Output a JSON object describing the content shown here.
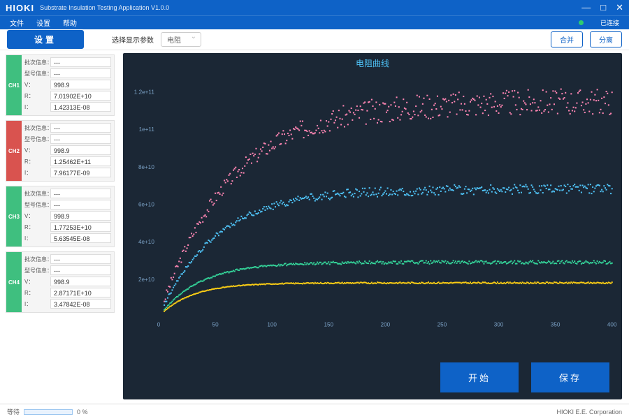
{
  "window": {
    "brand": "HIOKI",
    "subtitle": "Substrate Insulation Testing Application V1.0.0",
    "min": "—",
    "max": "□",
    "close": "✕"
  },
  "menu": {
    "file": "文件",
    "settings": "设置",
    "help": "帮助",
    "connected": "已连接"
  },
  "toolbar": {
    "settings_btn": "设置",
    "param_label": "选择显示参数",
    "param_value": "电阻",
    "merge": "合并",
    "split": "分离"
  },
  "chart": {
    "type": "scatter",
    "title": "电阻曲线",
    "background_color": "#1b2735",
    "title_color": "#4fc3f7",
    "axis_text_color": "#7aa0c4",
    "xlim": [
      0,
      400
    ],
    "xtick_step": 50,
    "ylim": [
      0,
      130000000000
    ],
    "yticks": [
      20000000000,
      40000000000,
      60000000000,
      80000000000,
      100000000000,
      120000000000
    ],
    "ytick_labels": [
      "2e+10",
      "4e+10",
      "6e+10",
      "8e+10",
      "1e+11",
      "1.2e+11"
    ],
    "marker_size": 2,
    "marker_shape": "square",
    "series": [
      {
        "name": "CH1",
        "color": "#ff85b3",
        "asymptote": 115000000000,
        "rate": 0.016,
        "noise": 0.06
      },
      {
        "name": "CH2",
        "color": "#4fc3f7",
        "asymptote": 68000000000,
        "rate": 0.02,
        "noise": 0.04
      },
      {
        "name": "CH3",
        "color": "#34d399",
        "asymptote": 29000000000,
        "rate": 0.028,
        "noise": 0.03
      },
      {
        "name": "CH4",
        "color": "#facc15",
        "asymptote": 18000000000,
        "rate": 0.035,
        "noise": 0.02
      }
    ]
  },
  "channels": [
    {
      "id": "CH1",
      "color": "#3fbf7f",
      "batch": "---",
      "model": "---",
      "v": "998.9",
      "r": "7.01902E+10",
      "i": "1.42313E-08"
    },
    {
      "id": "CH2",
      "color": "#d9534f",
      "batch": "---",
      "model": "---",
      "v": "998.9",
      "r": "1.25462E+11",
      "i": "7.96177E-09"
    },
    {
      "id": "CH3",
      "color": "#3fbf7f",
      "batch": "---",
      "model": "---",
      "v": "998.9",
      "r": "1.77253E+10",
      "i": "5.63545E-08"
    },
    {
      "id": "CH4",
      "color": "#3fbf7f",
      "batch": "---",
      "model": "---",
      "v": "998.9",
      "r": "2.87171E+10",
      "i": "3.47842E-08"
    }
  ],
  "field_labels": {
    "batch": "批次信息：",
    "model": "型号信息：",
    "v": "V：",
    "r": "R：",
    "i": "I："
  },
  "actions": {
    "start": "开始",
    "save": "保存"
  },
  "status": {
    "wait": "等待",
    "pct": "0 %",
    "corp": "HIOKI E.E. Corporation"
  }
}
